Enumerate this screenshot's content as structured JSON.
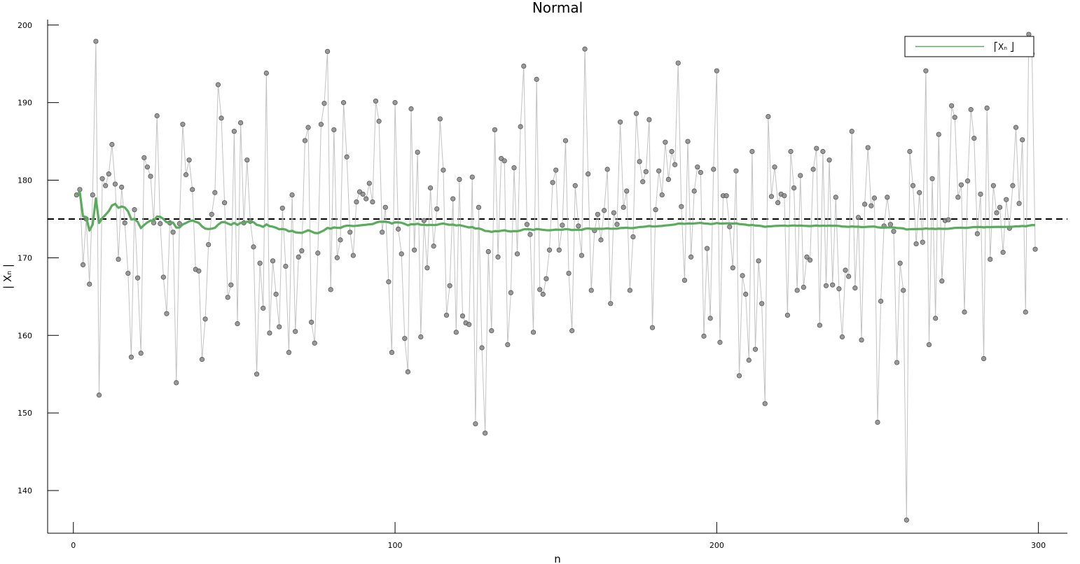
{
  "chart_data": {
    "type": "line",
    "title": "Normal",
    "xlabel": "n",
    "ylabel": "| Xₙ |",
    "xlim": [
      -8,
      309
    ],
    "ylim": [
      134.5,
      200.7
    ],
    "xticks": [
      0,
      100,
      200,
      300
    ],
    "yticks": [
      140,
      150,
      160,
      170,
      180,
      190,
      200
    ],
    "grid": false,
    "legend_position": "top-right",
    "legend": [
      {
        "label": "⎡Xₙ ⎦",
        "color": "#5aab5c"
      }
    ],
    "reference_line": {
      "y": 175,
      "style": "dashed",
      "color": "#000000"
    },
    "colors": {
      "points": "#8a8a8a",
      "raw_line": "#c2c2c2",
      "running_mean": "#5aab5c"
    },
    "x_start": 1,
    "samples": [
      178.1,
      178.8,
      169.1,
      175.0,
      166.6,
      178.1,
      197.9,
      152.3,
      180.2,
      179.3,
      180.8,
      184.6,
      179.5,
      169.8,
      179.1,
      174.5,
      168.0,
      157.2,
      176.2,
      167.4,
      157.7,
      182.9,
      181.7,
      180.5,
      174.5,
      188.3,
      174.4,
      167.5,
      162.8,
      174.5,
      173.3,
      153.9,
      174.4,
      187.2,
      180.7,
      182.6,
      178.8,
      168.5,
      168.3,
      156.9,
      162.1,
      171.7,
      175.6,
      178.4,
      192.3,
      188.0,
      177.1,
      164.9,
      166.5,
      186.3,
      161.5,
      187.4,
      174.5,
      182.6,
      174.7,
      171.4,
      155.0,
      169.3,
      163.5,
      193.8,
      160.3,
      169.6,
      165.3,
      161.1,
      176.4,
      168.9,
      157.8,
      178.1,
      160.5,
      170.1,
      170.9,
      185.1,
      186.8,
      161.7,
      159.0,
      170.6,
      187.2,
      189.9,
      196.6,
      165.9,
      186.5,
      170.0,
      172.3,
      190.0,
      183.0,
      173.3,
      170.3,
      177.2,
      178.5,
      178.2,
      177.6,
      179.6,
      177.2,
      190.2,
      187.6,
      173.3,
      176.5,
      166.9,
      157.8,
      190.0,
      173.7,
      170.5,
      159.6,
      155.3,
      189.2,
      171.0,
      183.6,
      159.8,
      174.8,
      168.7,
      179.0,
      171.5,
      176.3,
      187.9,
      181.3,
      162.6,
      166.4,
      177.6,
      160.4,
      180.1,
      162.5,
      161.6,
      161.4,
      180.4,
      148.6,
      176.5,
      158.4,
      147.4,
      170.8,
      160.6,
      186.5,
      170.1,
      182.8,
      182.5,
      158.8,
      165.5,
      181.6,
      170.5,
      186.9,
      194.7,
      174.3,
      173.0,
      160.4,
      193.0,
      165.9,
      165.3,
      167.3,
      171.0,
      179.7,
      181.3,
      171.0,
      174.2,
      185.1,
      168.0,
      160.6,
      179.3,
      174.1,
      170.3,
      196.9,
      180.8,
      165.8,
      173.5,
      175.6,
      172.3,
      176.1,
      181.4,
      164.1,
      175.8,
      174.3,
      187.5,
      176.5,
      178.6,
      165.8,
      172.7,
      188.6,
      182.4,
      179.8,
      181.1,
      187.8,
      161.0,
      176.2,
      181.2,
      178.1,
      184.9,
      180.1,
      183.7,
      182.0,
      195.1,
      176.6,
      167.1,
      185.0,
      170.1,
      178.6,
      181.7,
      181.0,
      159.9,
      171.2,
      162.2,
      181.4,
      194.1,
      159.1,
      178.0,
      178.0,
      174.0,
      168.7,
      181.2,
      154.8,
      167.7,
      165.3,
      156.8,
      183.7,
      158.2,
      169.6,
      164.1,
      151.2,
      188.2,
      177.9,
      181.7,
      177.1,
      178.2,
      178.0,
      162.6,
      183.7,
      179.0,
      165.8,
      180.6,
      166.2,
      170.1,
      169.7,
      181.4,
      184.1,
      161.3,
      183.7,
      166.4,
      182.6,
      166.5,
      177.8,
      166.0,
      159.8,
      168.4,
      167.6,
      186.3,
      166.1,
      175.2,
      159.4,
      176.9,
      184.2,
      176.7,
      177.7,
      148.8,
      164.4,
      174.1,
      177.8,
      174.3,
      173.4,
      156.5,
      169.3,
      165.8,
      136.2,
      183.7,
      179.3,
      171.8,
      178.4,
      172.0,
      194.1,
      158.8,
      180.2,
      162.2,
      185.9,
      167.0,
      174.8,
      174.9,
      189.6,
      188.1,
      177.8,
      179.4,
      163.0,
      179.9,
      189.1,
      185.4,
      173.1,
      178.2,
      157.0,
      189.3,
      169.8,
      179.3,
      175.8,
      176.5,
      170.7,
      177.5,
      173.8,
      179.3,
      186.8,
      177.0,
      185.2,
      163.0,
      198.8,
      196.3,
      171.1
    ]
  }
}
